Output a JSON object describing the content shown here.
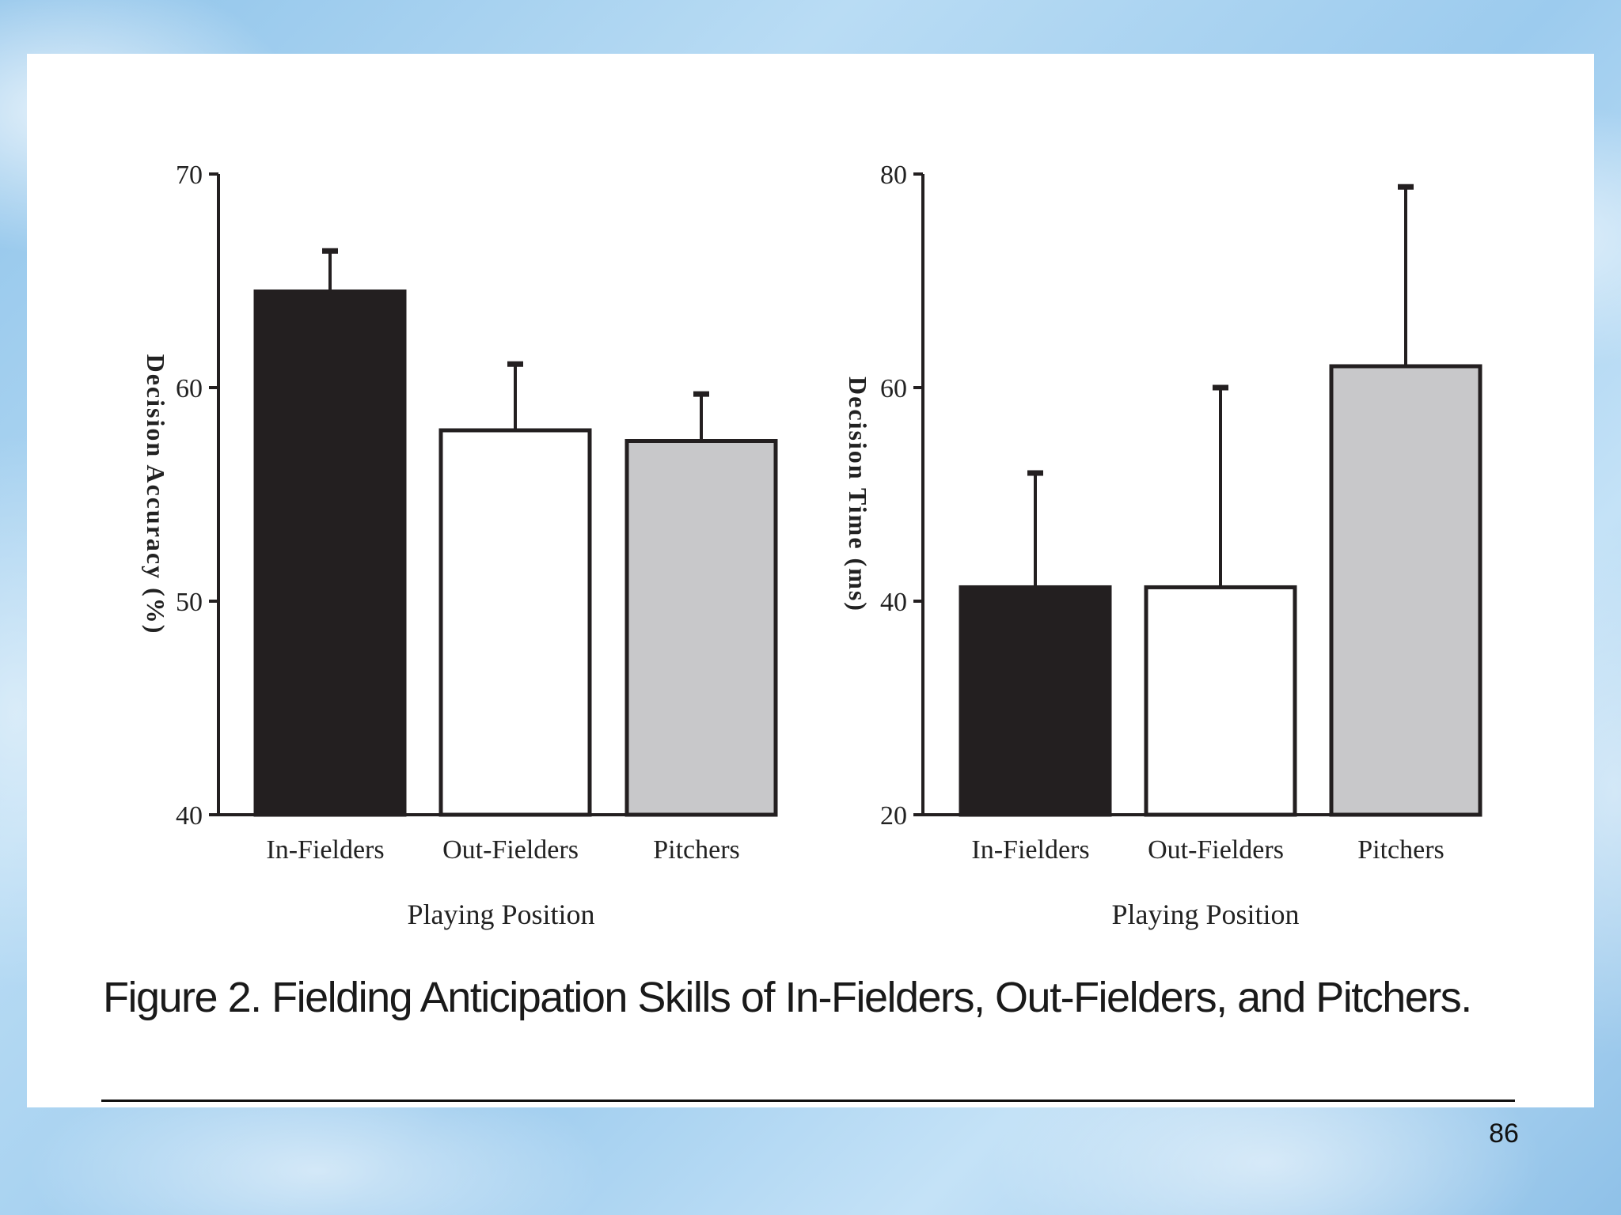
{
  "slide": {
    "caption": "Figure 2. Fielding Anticipation Skills of In-Fielders, Out-Fielders, and Pitchers.",
    "page_number": "86"
  },
  "colors": {
    "in_fielders": "#231f20",
    "out_fielders": "#ffffff",
    "pitchers": "#c8c8ca",
    "axis": "#231f20"
  },
  "chart_data": [
    {
      "type": "bar",
      "title": "",
      "categories": [
        "In-Fielders",
        "Out-Fielders",
        "Pitchers"
      ],
      "values": [
        64.5,
        58,
        57.5
      ],
      "error_upper": [
        66.4,
        61.1,
        59.7
      ],
      "xlabel": "Playing Position",
      "ylabel": "Decision Accuracy (%)",
      "ylim": [
        40,
        70
      ],
      "yticks": [
        40,
        50,
        60,
        70
      ],
      "grid": false
    },
    {
      "type": "bar",
      "title": "",
      "categories": [
        "In-Fielders",
        "Out-Fielders",
        "Pitchers"
      ],
      "values": [
        41.3,
        41.3,
        62
      ],
      "error_upper": [
        52,
        60,
        78.8
      ],
      "xlabel": "Playing Position",
      "ylabel": "Decision Time (ms)",
      "ylim": [
        20,
        80
      ],
      "yticks": [
        20,
        40,
        60,
        80
      ],
      "grid": false
    }
  ]
}
